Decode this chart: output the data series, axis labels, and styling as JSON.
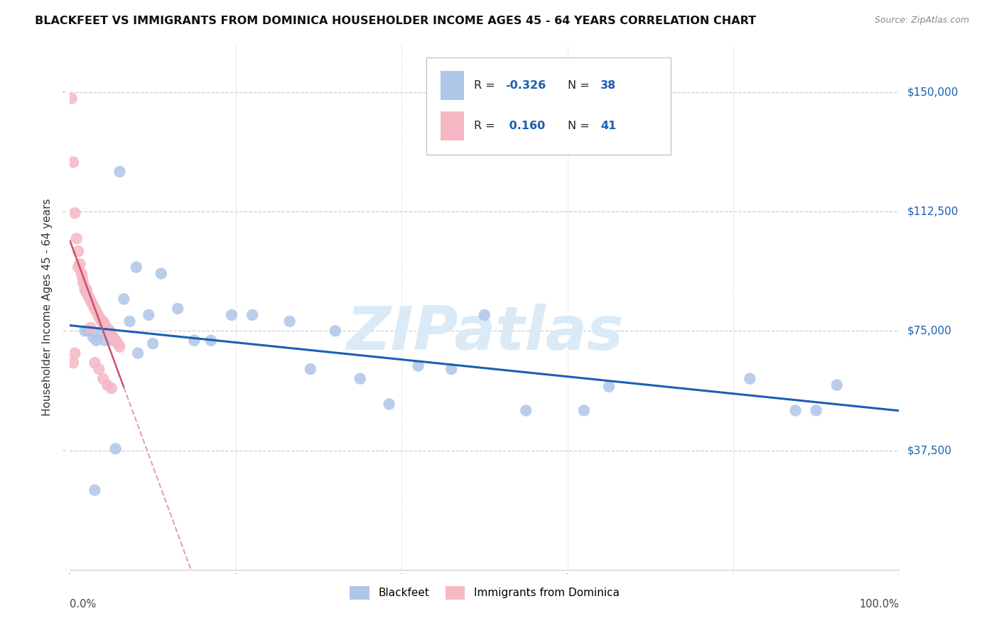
{
  "title": "BLACKFEET VS IMMIGRANTS FROM DOMINICA HOUSEHOLDER INCOME AGES 45 - 64 YEARS CORRELATION CHART",
  "source": "Source: ZipAtlas.com",
  "ylabel": "Householder Income Ages 45 - 64 years",
  "legend_labels": [
    "Blackfeet",
    "Immigrants from Dominica"
  ],
  "R_blue": -0.326,
  "N_blue": 38,
  "R_pink": 0.16,
  "N_pink": 41,
  "blue_color": "#aec6e8",
  "pink_color": "#f5b8c4",
  "blue_line_color": "#1a5fb4",
  "pink_line_color": "#c85070",
  "pink_dash_color": "#e8a0b0",
  "watermark": "ZIPatlas",
  "watermark_color": "#daeaf7",
  "blue_x": [
    0.018,
    0.022,
    0.028,
    0.032,
    0.038,
    0.042,
    0.048,
    0.052,
    0.06,
    0.065,
    0.072,
    0.08,
    0.095,
    0.1,
    0.11,
    0.13,
    0.15,
    0.17,
    0.195,
    0.22,
    0.265,
    0.29,
    0.32,
    0.35,
    0.385,
    0.42,
    0.46,
    0.5,
    0.55,
    0.62,
    0.65,
    0.82,
    0.875,
    0.9,
    0.925,
    0.055,
    0.03,
    0.082
  ],
  "blue_y": [
    75000,
    75000,
    73000,
    72000,
    75000,
    72000,
    73000,
    72000,
    125000,
    85000,
    78000,
    95000,
    80000,
    71000,
    93000,
    82000,
    72000,
    72000,
    80000,
    80000,
    78000,
    63000,
    75000,
    60000,
    52000,
    64000,
    63000,
    80000,
    50000,
    50000,
    57500,
    60000,
    50000,
    50000,
    58000,
    38000,
    25000,
    68000
  ],
  "pink_x": [
    0.002,
    0.004,
    0.006,
    0.008,
    0.01,
    0.012,
    0.014,
    0.016,
    0.018,
    0.02,
    0.022,
    0.024,
    0.026,
    0.028,
    0.03,
    0.032,
    0.034,
    0.036,
    0.038,
    0.04,
    0.04,
    0.042,
    0.044,
    0.046,
    0.048,
    0.05,
    0.052,
    0.055,
    0.058,
    0.06,
    0.01,
    0.015,
    0.02,
    0.025,
    0.03,
    0.035,
    0.04,
    0.045,
    0.05,
    0.006,
    0.004
  ],
  "pink_y": [
    148000,
    128000,
    112000,
    104000,
    100000,
    96000,
    93000,
    90000,
    88000,
    87000,
    86000,
    85000,
    84000,
    83000,
    82000,
    81000,
    80000,
    79000,
    78000,
    77500,
    78000,
    77000,
    76000,
    75500,
    75000,
    74000,
    73000,
    72000,
    71000,
    70000,
    95000,
    92000,
    88000,
    76000,
    65000,
    63000,
    60000,
    58000,
    57000,
    68000,
    65000
  ]
}
